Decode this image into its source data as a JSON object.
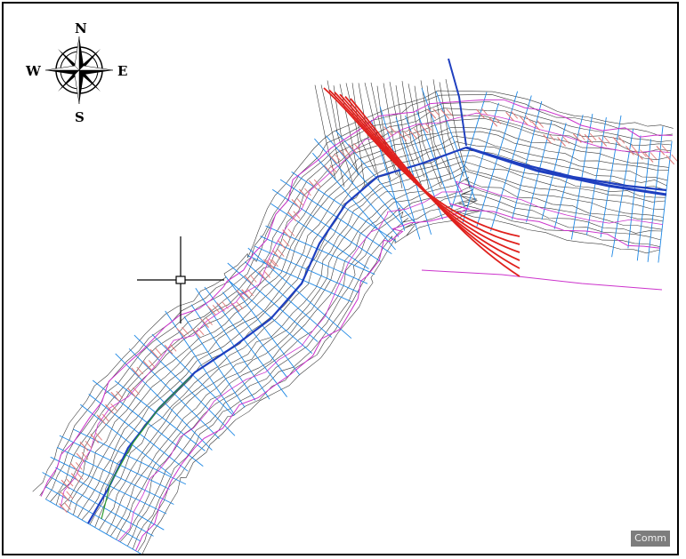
{
  "compass": {
    "north": "N",
    "south": "S",
    "east": "E",
    "west": "W",
    "icon": "compass-rose-icon"
  },
  "crosshair": {
    "icon": "crosshair-cursor-icon"
  },
  "drawing": {
    "layer_colors": {
      "contour": "#3a3a3a",
      "section": "#1e88e5",
      "boundary": "#cc33cc",
      "centerline": "#1f3fbf",
      "road_edge": "#e0201c",
      "annotation": "#e07a7a",
      "trace": "#2e9a2e"
    }
  },
  "command_line": {
    "label": "Comm"
  }
}
